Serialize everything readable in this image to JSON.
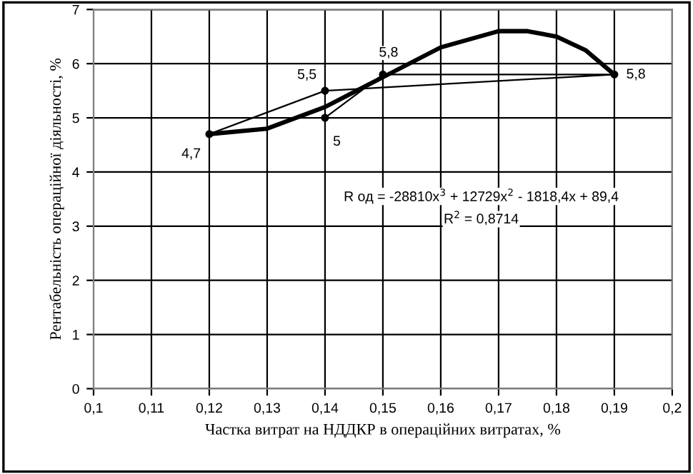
{
  "chart_data": {
    "type": "line",
    "xlabel": "Частка витрат на НДДКР в операційних витратах, %",
    "ylabel": "Рентабельність операційної діяльності, %",
    "xlim": [
      0.1,
      0.2
    ],
    "xticks": [
      {
        "value": 0.1,
        "label": "0,1"
      },
      {
        "value": 0.11,
        "label": "0,11"
      },
      {
        "value": 0.12,
        "label": "0,12"
      },
      {
        "value": 0.13,
        "label": "0,13"
      },
      {
        "value": 0.14,
        "label": "0,14"
      },
      {
        "value": 0.15,
        "label": "0,15"
      },
      {
        "value": 0.16,
        "label": "0,16"
      },
      {
        "value": 0.17,
        "label": "0,17"
      },
      {
        "value": 0.18,
        "label": "0,18"
      },
      {
        "value": 0.19,
        "label": "0,19"
      },
      {
        "value": 0.2,
        "label": "0,2"
      }
    ],
    "ylim": [
      0,
      7
    ],
    "yticks": [
      0,
      1,
      2,
      3,
      4,
      5,
      6,
      7
    ],
    "grid": true,
    "series": [
      {
        "color": "#000000",
        "x": [
          0.12,
          0.14,
          0.19,
          0.15,
          0.14
        ],
        "values": [
          4.7,
          5.5,
          5.8,
          5.8,
          5.0
        ],
        "value_labels": [
          "4,7",
          "5,5",
          "5,8",
          "5,8",
          "5"
        ],
        "marker": "circle"
      },
      {
        "color": "#000000",
        "x": [
          0.12,
          0.13,
          0.14,
          0.15,
          0.16,
          0.17,
          0.175,
          0.18,
          0.185,
          0.19
        ],
        "values": [
          4.7,
          4.8,
          5.2,
          5.75,
          6.3,
          6.6,
          6.6,
          6.5,
          6.25,
          5.8
        ],
        "marker": "none"
      }
    ],
    "annotations": [
      "R од = -28810x$^{3}$ + 12729x$^{2}$ - 1818,4x + 89,4",
      "R$^{2}$ = 0,8714"
    ]
  }
}
